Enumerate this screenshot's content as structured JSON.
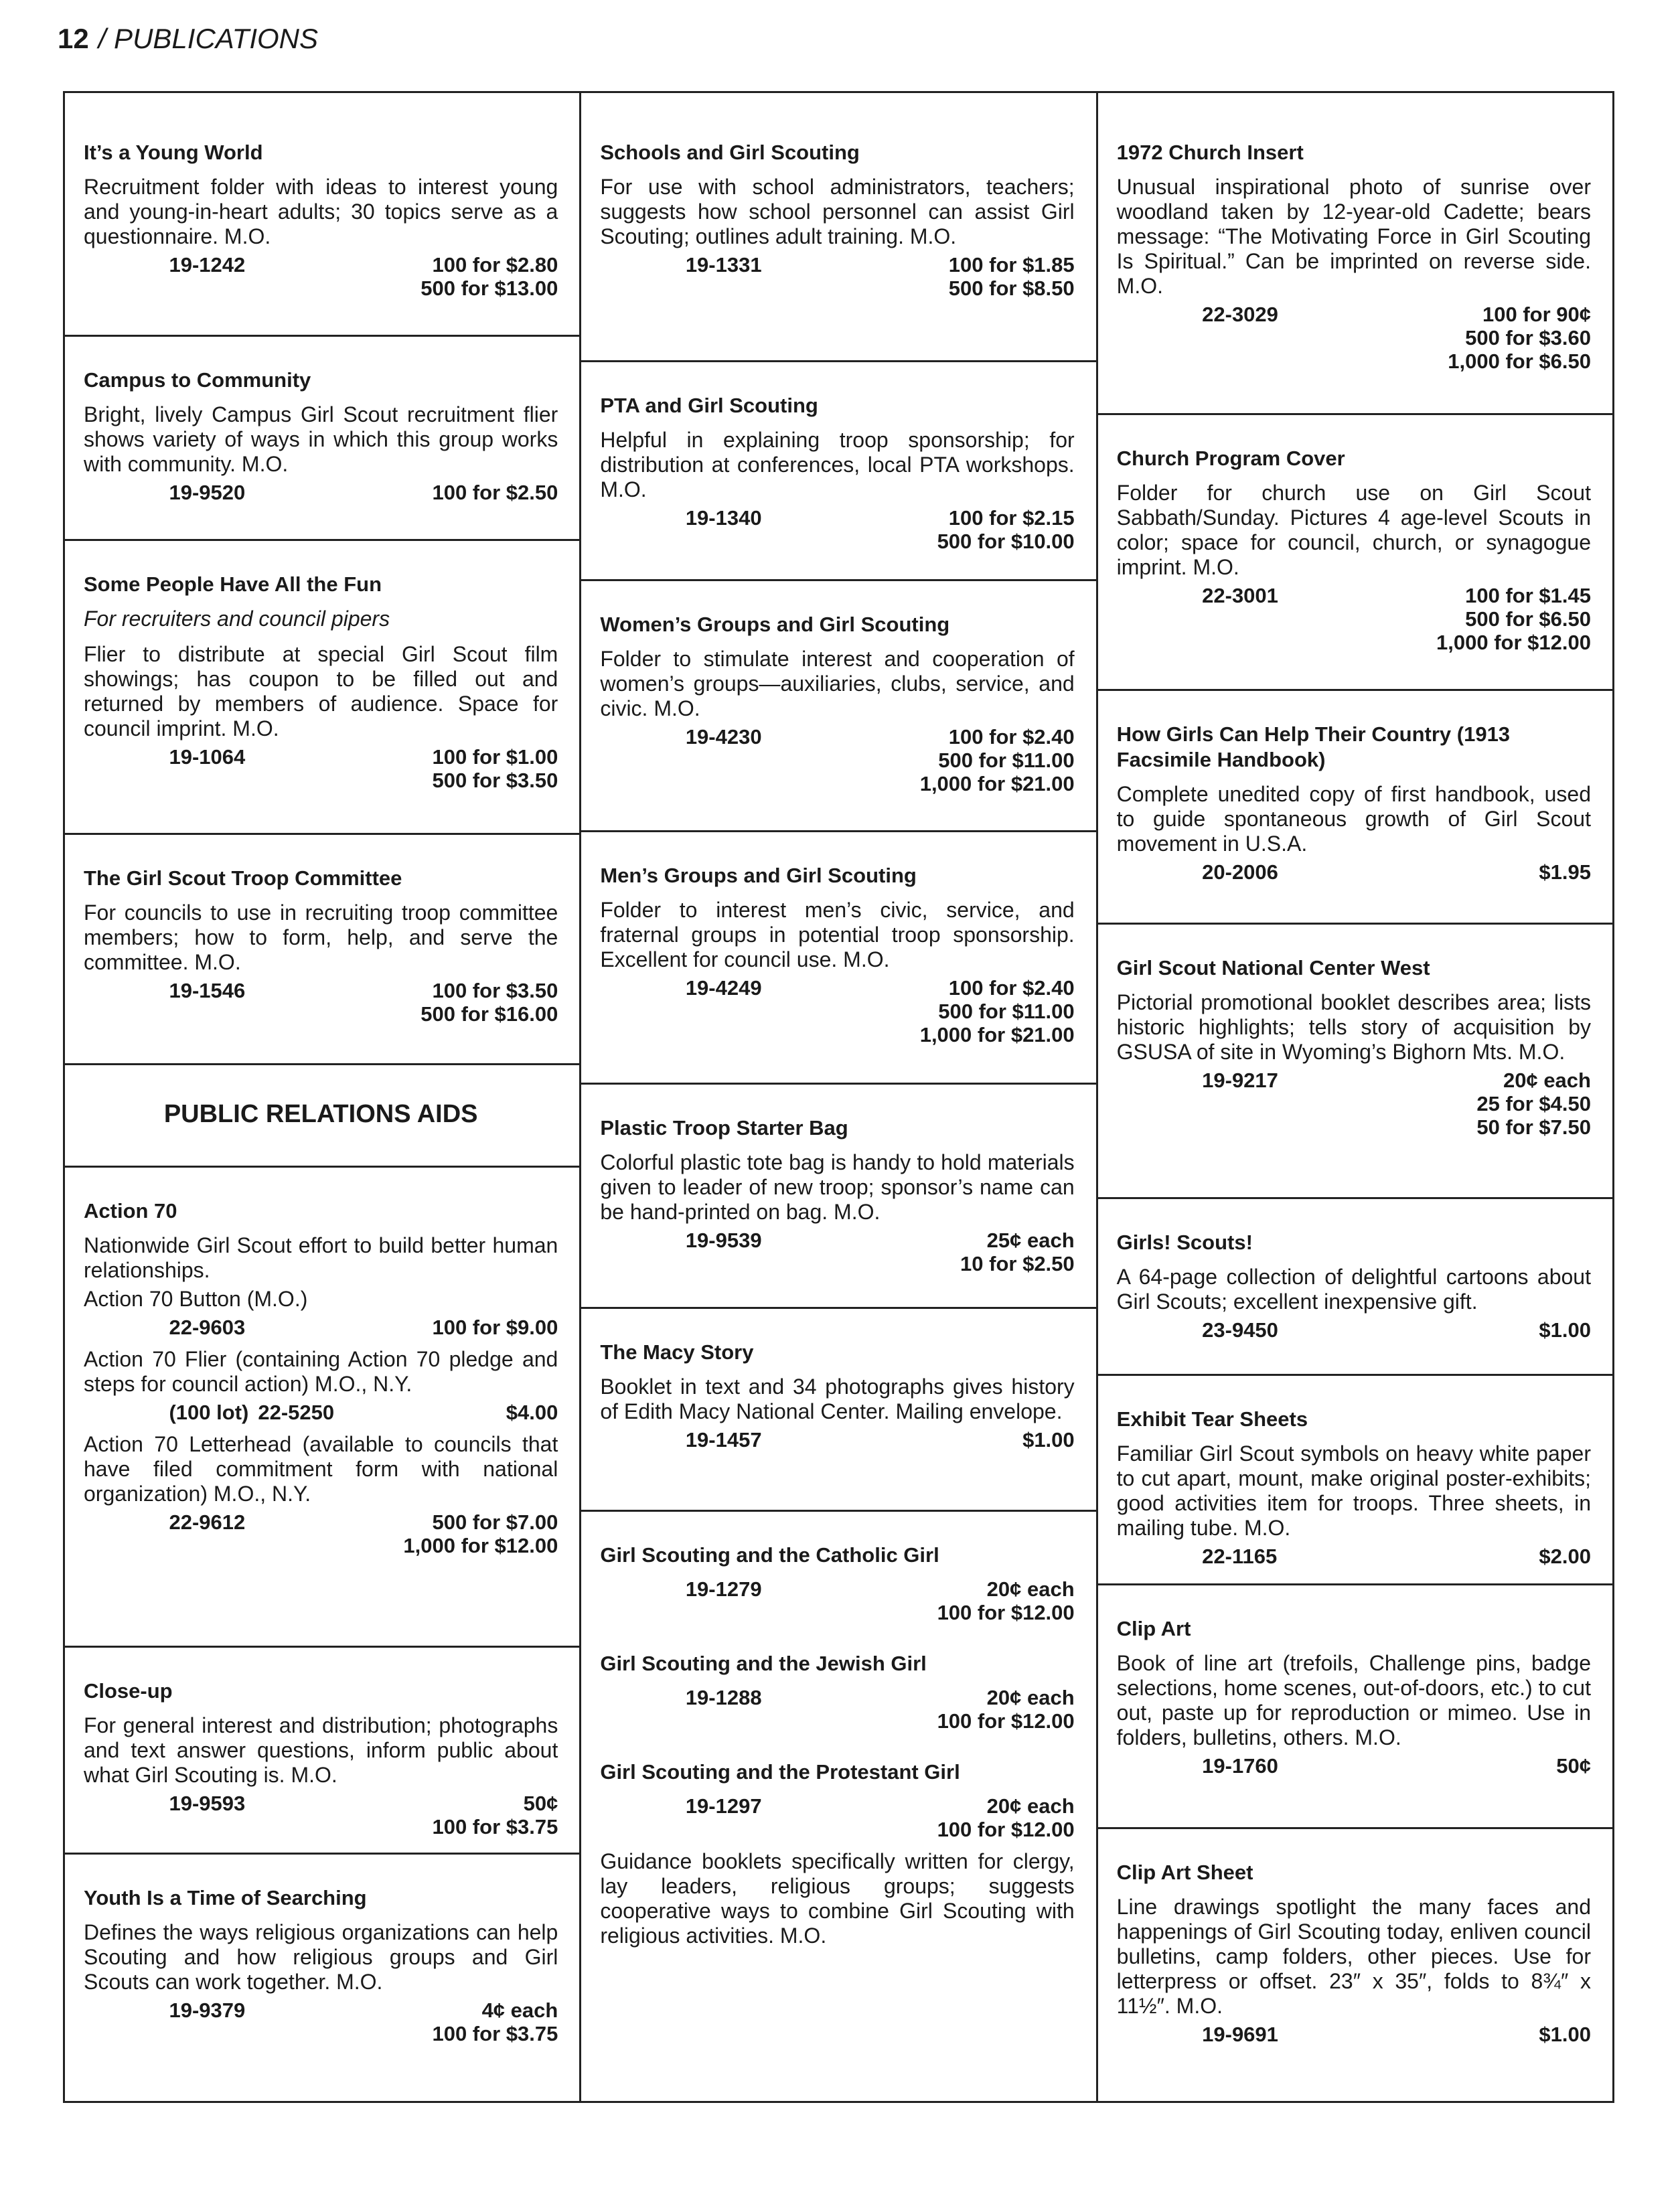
{
  "header": {
    "page_number": "12",
    "section": "/ PUBLICATIONS"
  },
  "columns": [
    [
      {
        "items": [
          {
            "title": "It’s a Young World"
          },
          {
            "text": "Recruitment folder with ideas to interest young and young-in-heart adults; 30 topics serve as a questionnaire. M.O."
          },
          {
            "code": "19-1242",
            "prices": [
              "100 for $2.80",
              "500 for $13.00"
            ]
          }
        ]
      },
      {
        "items": [
          {
            "title": "Campus to Community"
          },
          {
            "text": "Bright, lively Campus Girl Scout recruitment flier shows variety of ways in which this group works with community. M.O."
          },
          {
            "code": "19-9520",
            "prices": [
              "100 for $2.50"
            ]
          }
        ]
      },
      {
        "items": [
          {
            "title": "Some People Have All the Fun"
          },
          {
            "subtitle": "For recruiters and council pipers"
          },
          {
            "text": "Flier to distribute at special Girl Scout film showings; has coupon to be filled out and returned by members of audience. Space for council imprint. M.O."
          },
          {
            "code": "19-1064",
            "prices": [
              "100 for $1.00",
              "500 for $3.50"
            ]
          }
        ]
      },
      {
        "items": [
          {
            "title": "The Girl Scout Troop Committee"
          },
          {
            "text": "For councils to use in recruiting troop committee members; how to form, help, and serve the committee. M.O."
          },
          {
            "code": "19-1546",
            "prices": [
              "100 for $3.50",
              "500 for $16.00"
            ]
          }
        ]
      },
      {
        "items": [
          {
            "heading": "PUBLIC RELATIONS AIDS"
          }
        ]
      },
      {
        "items": [
          {
            "title": "Action 70"
          },
          {
            "text": "Nationwide Girl Scout effort to build better human relationships."
          },
          {
            "text": "Action 70 Button (M.O.)"
          },
          {
            "code": "22-9603",
            "prices": [
              "100 for $9.00"
            ]
          },
          {
            "text": "Action 70 Flier (containing Action 70 pledge and steps for council action) M.O., N.Y."
          },
          {
            "lot": "(100 lot)",
            "code": "22-5250",
            "prices": [
              "$4.00"
            ]
          },
          {
            "text": "Action 70 Letterhead (available to councils that have filed commitment form with national organization) M.O., N.Y."
          },
          {
            "code": "22-9612",
            "prices": [
              "500 for $7.00",
              "1,000 for $12.00"
            ]
          }
        ]
      },
      {
        "items": [
          {
            "title": "Close-up"
          },
          {
            "text": "For general interest and distribution; photographs and text answer questions, inform public about what Girl Scouting is. M.O."
          },
          {
            "code": "19-9593",
            "prices": [
              "50¢",
              "100 for $3.75"
            ]
          }
        ]
      },
      {
        "items": [
          {
            "title": "Youth Is a Time of Searching"
          },
          {
            "text": "Defines the ways religious organizations can help Scouting and how religious groups and Girl Scouts can work together. M.O."
          },
          {
            "code": "19-9379",
            "prices": [
              "4¢ each",
              "100 for $3.75"
            ]
          }
        ]
      }
    ],
    [
      {
        "items": [
          {
            "title": "Schools and Girl Scouting"
          },
          {
            "text": "For use with school administrators, teachers; suggests how school personnel can assist Girl Scouting; outlines adult training. M.O."
          },
          {
            "code": "19-1331",
            "prices": [
              "100 for $1.85",
              "500 for $8.50"
            ]
          }
        ]
      },
      {
        "items": [
          {
            "title": "PTA and Girl Scouting"
          },
          {
            "text": "Helpful in explaining troop sponsorship; for distribution at conferences, local PTA workshops. M.O."
          },
          {
            "code": "19-1340",
            "prices": [
              "100 for $2.15",
              "500 for $10.00"
            ]
          }
        ]
      },
      {
        "items": [
          {
            "title": "Women’s Groups and Girl Scouting"
          },
          {
            "text": "Folder to stimulate interest and cooperation of women’s groups—auxiliaries, clubs, service, and civic. M.O."
          },
          {
            "code": "19-4230",
            "prices": [
              "100 for $2.40",
              "500 for $11.00",
              "1,000 for $21.00"
            ]
          }
        ]
      },
      {
        "items": [
          {
            "title": "Men’s Groups and Girl Scouting"
          },
          {
            "text": "Folder to interest men’s civic, service, and fraternal groups in potential troop sponsorship. Excellent for council use. M.O."
          },
          {
            "code": "19-4249",
            "prices": [
              "100 for $2.40",
              "500 for $11.00",
              "1,000 for $21.00"
            ]
          }
        ]
      },
      {
        "items": [
          {
            "title": "Plastic Troop Starter Bag"
          },
          {
            "text": "Colorful plastic tote bag is handy to hold materials given to leader of new troop; sponsor’s name can be hand-printed on bag. M.O."
          },
          {
            "code": "19-9539",
            "prices": [
              "25¢ each",
              "10 for $2.50"
            ]
          }
        ]
      },
      {
        "items": [
          {
            "title": "The Macy Story"
          },
          {
            "text": "Booklet in text and 34 photographs gives history of Edith Macy National Center. Mailing envelope."
          },
          {
            "code": "19-1457",
            "prices": [
              "$1.00"
            ]
          }
        ]
      },
      {
        "items": [
          {
            "title": "Girl Scouting and the Catholic Girl"
          },
          {
            "code": "19-1279",
            "prices": [
              "20¢ each",
              "100 for $12.00"
            ]
          },
          {
            "title": "Girl Scouting and the Jewish Girl"
          },
          {
            "code": "19-1288",
            "prices": [
              "20¢ each",
              "100 for $12.00"
            ]
          },
          {
            "title": "Girl Scouting and the Protestant Girl"
          },
          {
            "code": "19-1297",
            "prices": [
              "20¢ each",
              "100 for $12.00"
            ]
          },
          {
            "text": "Guidance booklets specifically written for clergy, lay leaders, religious groups; suggests cooperative ways to combine Girl Scouting with religious activities. M.O."
          }
        ]
      }
    ],
    [
      {
        "items": [
          {
            "title": "1972 Church Insert"
          },
          {
            "text": "Unusual inspirational photo of sunrise over woodland taken by 12-year-old Cadette; bears message: “The Motivating Force in Girl Scouting Is Spiritual.” Can be imprinted on reverse side. M.O."
          },
          {
            "code": "22-3029",
            "prices": [
              "100 for 90¢",
              "500 for $3.60",
              "1,000 for $6.50"
            ]
          }
        ]
      },
      {
        "items": [
          {
            "title": "Church Program Cover"
          },
          {
            "text": "Folder for church use on Girl Scout Sabbath/Sunday. Pictures 4 age-level Scouts in color; space for council, church, or synagogue imprint. M.O."
          },
          {
            "code": "22-3001",
            "prices": [
              "100 for $1.45",
              "500 for $6.50",
              "1,000 for $12.00"
            ]
          }
        ]
      },
      {
        "items": [
          {
            "title": "How Girls Can Help Their Country (1913 Facsimile Handbook)"
          },
          {
            "text": "Complete unedited copy of first handbook, used to guide spontaneous growth of Girl Scout movement in U.S.A."
          },
          {
            "code": "20-2006",
            "prices": [
              "$1.95"
            ]
          }
        ]
      },
      {
        "items": [
          {
            "title": "Girl Scout National Center West"
          },
          {
            "text": "Pictorial promotional booklet describes area; lists historic highlights; tells story of acquisition by GSUSA of site in Wyoming’s Bighorn Mts. M.O."
          },
          {
            "code": "19-9217",
            "prices": [
              "20¢ each",
              "25 for $4.50",
              "50 for $7.50"
            ]
          }
        ]
      },
      {
        "items": [
          {
            "title": "Girls! Scouts!"
          },
          {
            "text": "A 64-page collection of delightful cartoons about Girl Scouts; excellent inexpensive gift."
          },
          {
            "code": "23-9450",
            "prices": [
              "$1.00"
            ]
          }
        ]
      },
      {
        "items": [
          {
            "title": "Exhibit Tear Sheets"
          },
          {
            "text": "Familiar Girl Scout symbols on heavy white paper to cut apart, mount, make original poster-exhibits; good activities item for troops. Three sheets, in mailing tube. M.O."
          },
          {
            "code": "22-1165",
            "prices": [
              "$2.00"
            ]
          }
        ]
      },
      {
        "items": [
          {
            "title": "Clip Art"
          },
          {
            "text": "Book of line art (trefoils, Challenge pins, badge selections, home scenes, out-of-doors, etc.) to cut out, paste up for reproduction or mimeo. Use in folders, bulletins, others. M.O."
          },
          {
            "code": "19-1760",
            "prices": [
              "50¢"
            ]
          }
        ]
      },
      {
        "items": [
          {
            "title": "Clip Art Sheet"
          },
          {
            "text": "Line drawings spotlight the many faces and happenings of Girl Scouting today, enliven council bulletins, camp folders, other pieces. Use for letterpress or offset. 23″ x 35″, folds to 8¾″ x 11½″. M.O."
          },
          {
            "code": "19-9691",
            "prices": [
              "$1.00"
            ]
          }
        ]
      }
    ]
  ]
}
